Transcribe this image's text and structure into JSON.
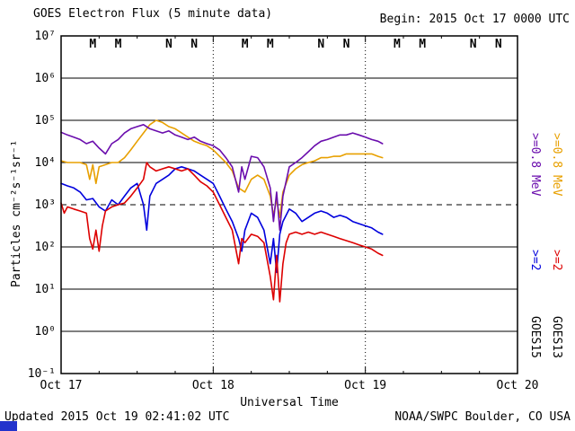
{
  "header": {
    "title": "GOES Electron Flux (5 minute data)",
    "begin_label": "Begin: 2015 Oct 17 0000 UTC"
  },
  "footer": {
    "updated_label": "Updated 2015 Oct 19 02:41:02 UTC",
    "source_label": "NOAA/SWPC Boulder, CO USA"
  },
  "legend": {
    "goes15": {
      "name": "GOES15",
      "e08_label": ">=0.8 MeV",
      "e2_label": ">=2",
      "e08_color": "#6a0dad",
      "e2_color": "#0000dd"
    },
    "goes13": {
      "name": "GOES13",
      "e08_label": ">=0.8 MeV",
      "e2_label": ">=2",
      "e08_color": "#e8a000",
      "e2_color": "#dd0000"
    }
  },
  "ui": {
    "bottom_strip_color": "#2233cc"
  },
  "chart_data": {
    "type": "line",
    "title": "GOES Electron Flux (5 minute data)",
    "xlabel": "Universal Time",
    "ylabel": "Particles cm⁻²s⁻¹sr⁻¹",
    "x_unit": "hours since 2015 Oct 17 0000 UTC",
    "xlim_hours": [
      0,
      72
    ],
    "ylim": [
      0.1,
      10000000
    ],
    "x_ticks": [
      {
        "t": 0,
        "label": "Oct 17"
      },
      {
        "t": 24,
        "label": "Oct 18"
      },
      {
        "t": 48,
        "label": "Oct 19"
      },
      {
        "t": 72,
        "label": "Oct 20"
      }
    ],
    "x_minor_tick_hours": 6,
    "y_ticks": [
      {
        "exp": 7,
        "label": "10⁷"
      },
      {
        "exp": 6,
        "label": "10⁶"
      },
      {
        "exp": 5,
        "label": "10⁵"
      },
      {
        "exp": 4,
        "label": "10⁴"
      },
      {
        "exp": 3,
        "label": "10³"
      },
      {
        "exp": 2,
        "label": "10²"
      },
      {
        "exp": 1,
        "label": "10¹"
      },
      {
        "exp": 0,
        "label": "10⁰"
      },
      {
        "exp": -1,
        "label": "10⁻¹"
      }
    ],
    "threshold": {
      "value": 1000,
      "style": "dashed"
    },
    "day_lines_dotted_hours": [
      24,
      48
    ],
    "marker_colors": {
      "goes13": "#dd0000",
      "goes15": "#0000dd"
    },
    "markers": [
      {
        "t": 5,
        "label": "M",
        "sat": "goes13"
      },
      {
        "t": 9,
        "label": "M",
        "sat": "goes15"
      },
      {
        "t": 17,
        "label": "N",
        "sat": "goes13"
      },
      {
        "t": 21,
        "label": "N",
        "sat": "goes15"
      },
      {
        "t": 29,
        "label": "M",
        "sat": "goes13"
      },
      {
        "t": 33,
        "label": "M",
        "sat": "goes15"
      },
      {
        "t": 41,
        "label": "N",
        "sat": "goes13"
      },
      {
        "t": 45,
        "label": "N",
        "sat": "goes15"
      },
      {
        "t": 53,
        "label": "M",
        "sat": "goes13"
      },
      {
        "t": 57,
        "label": "M",
        "sat": "goes15"
      },
      {
        "t": 65,
        "label": "N",
        "sat": "goes13"
      },
      {
        "t": 69,
        "label": "N",
        "sat": "goes15"
      }
    ],
    "series": [
      {
        "name": "GOES13 >=0.8 MeV",
        "color": "#e8a000",
        "points": [
          [
            0,
            11000
          ],
          [
            1,
            10000
          ],
          [
            2,
            10000
          ],
          [
            3,
            10000
          ],
          [
            4,
            8900
          ],
          [
            4.5,
            4000
          ],
          [
            5,
            8900
          ],
          [
            5.5,
            3200
          ],
          [
            6,
            7900
          ],
          [
            7,
            8900
          ],
          [
            8,
            10000
          ],
          [
            9,
            10000
          ],
          [
            10,
            13000
          ],
          [
            11,
            20000
          ],
          [
            12,
            32000
          ],
          [
            13,
            50000
          ],
          [
            14,
            79000
          ],
          [
            15,
            100000
          ],
          [
            16,
            89000
          ],
          [
            17,
            71000
          ],
          [
            18,
            63000
          ],
          [
            19,
            50000
          ],
          [
            20,
            40000
          ],
          [
            21,
            32000
          ],
          [
            22,
            28000
          ],
          [
            23,
            25000
          ],
          [
            24,
            20000
          ],
          [
            25,
            14000
          ],
          [
            26,
            10000
          ],
          [
            27,
            6300
          ],
          [
            28,
            2500
          ],
          [
            29,
            2000
          ],
          [
            30,
            4000
          ],
          [
            31,
            5000
          ],
          [
            32,
            4000
          ],
          [
            33,
            1600
          ],
          [
            33.5,
            560
          ],
          [
            34,
            1300
          ],
          [
            34.5,
            500
          ],
          [
            35,
            2000
          ],
          [
            36,
            5000
          ],
          [
            37,
            7100
          ],
          [
            38,
            8900
          ],
          [
            39,
            10000
          ],
          [
            40,
            11000
          ],
          [
            41,
            13000
          ],
          [
            42,
            13000
          ],
          [
            43,
            14000
          ],
          [
            44,
            14000
          ],
          [
            45,
            16000
          ],
          [
            46,
            16000
          ],
          [
            47,
            16000
          ],
          [
            48,
            16000
          ],
          [
            49,
            16000
          ],
          [
            50,
            14000
          ],
          [
            50.7,
            13000
          ]
        ]
      },
      {
        "name": "GOES15 >=0.8 MeV",
        "color": "#6a0dad",
        "points": [
          [
            0,
            52000
          ],
          [
            1,
            45000
          ],
          [
            2,
            40000
          ],
          [
            3,
            35000
          ],
          [
            4,
            28000
          ],
          [
            5,
            32000
          ],
          [
            6,
            22000
          ],
          [
            7,
            16000
          ],
          [
            8,
            28000
          ],
          [
            9,
            35000
          ],
          [
            10,
            50000
          ],
          [
            11,
            63000
          ],
          [
            12,
            71000
          ],
          [
            13,
            79000
          ],
          [
            14,
            63000
          ],
          [
            15,
            56000
          ],
          [
            16,
            50000
          ],
          [
            17,
            56000
          ],
          [
            18,
            45000
          ],
          [
            19,
            40000
          ],
          [
            20,
            35000
          ],
          [
            21,
            40000
          ],
          [
            22,
            32000
          ],
          [
            23,
            28000
          ],
          [
            24,
            25000
          ],
          [
            25,
            20000
          ],
          [
            26,
            13000
          ],
          [
            27,
            7900
          ],
          [
            28,
            2000
          ],
          [
            28.5,
            7900
          ],
          [
            29,
            4000
          ],
          [
            30,
            14000
          ],
          [
            31,
            13000
          ],
          [
            32,
            7900
          ],
          [
            33,
            2500
          ],
          [
            33.5,
            400
          ],
          [
            34,
            2000
          ],
          [
            34.5,
            250
          ],
          [
            35,
            1600
          ],
          [
            36,
            7900
          ],
          [
            37,
            10000
          ],
          [
            38,
            13000
          ],
          [
            39,
            18000
          ],
          [
            40,
            25000
          ],
          [
            41,
            32000
          ],
          [
            42,
            35000
          ],
          [
            43,
            40000
          ],
          [
            44,
            45000
          ],
          [
            45,
            45000
          ],
          [
            46,
            50000
          ],
          [
            47,
            45000
          ],
          [
            48,
            40000
          ],
          [
            49,
            35000
          ],
          [
            50,
            32000
          ],
          [
            50.7,
            28000
          ]
        ]
      },
      {
        "name": "GOES15 >=2 MeV",
        "color": "#0000dd",
        "points": [
          [
            0,
            3200
          ],
          [
            1,
            2800
          ],
          [
            2,
            2500
          ],
          [
            3,
            2000
          ],
          [
            4,
            1300
          ],
          [
            5,
            1400
          ],
          [
            6,
            890
          ],
          [
            7,
            710
          ],
          [
            8,
            1300
          ],
          [
            9,
            1000
          ],
          [
            10,
            1600
          ],
          [
            11,
            2500
          ],
          [
            12,
            3200
          ],
          [
            13,
            1000
          ],
          [
            13.5,
            250
          ],
          [
            14,
            1600
          ],
          [
            15,
            3200
          ],
          [
            16,
            4000
          ],
          [
            17,
            5000
          ],
          [
            18,
            7100
          ],
          [
            19,
            7900
          ],
          [
            20,
            7100
          ],
          [
            21,
            6300
          ],
          [
            22,
            5000
          ],
          [
            23,
            4000
          ],
          [
            24,
            3200
          ],
          [
            25,
            1600
          ],
          [
            26,
            790
          ],
          [
            27,
            400
          ],
          [
            28,
            158
          ],
          [
            28.5,
            79
          ],
          [
            29,
            250
          ],
          [
            30,
            630
          ],
          [
            31,
            500
          ],
          [
            32,
            250
          ],
          [
            33,
            40
          ],
          [
            33.5,
            158
          ],
          [
            34,
            25
          ],
          [
            34.5,
            200
          ],
          [
            35,
            400
          ],
          [
            36,
            790
          ],
          [
            37,
            630
          ],
          [
            38,
            400
          ],
          [
            39,
            500
          ],
          [
            40,
            630
          ],
          [
            41,
            710
          ],
          [
            42,
            630
          ],
          [
            43,
            500
          ],
          [
            44,
            560
          ],
          [
            45,
            500
          ],
          [
            46,
            400
          ],
          [
            47,
            355
          ],
          [
            48,
            316
          ],
          [
            49,
            282
          ],
          [
            50,
            224
          ],
          [
            50.7,
            200
          ]
        ]
      },
      {
        "name": "GOES13 >=2 MeV",
        "color": "#dd0000",
        "points": [
          [
            0,
            1100
          ],
          [
            0.5,
            630
          ],
          [
            1,
            890
          ],
          [
            2,
            790
          ],
          [
            3,
            710
          ],
          [
            4,
            630
          ],
          [
            4.5,
            158
          ],
          [
            5,
            89
          ],
          [
            5.5,
            250
          ],
          [
            6,
            79
          ],
          [
            6.5,
            316
          ],
          [
            7,
            710
          ],
          [
            8,
            890
          ],
          [
            9,
            1000
          ],
          [
            10,
            1100
          ],
          [
            11,
            1600
          ],
          [
            12,
            2500
          ],
          [
            13,
            4000
          ],
          [
            13.5,
            10000
          ],
          [
            14,
            7900
          ],
          [
            15,
            6300
          ],
          [
            16,
            7100
          ],
          [
            17,
            7900
          ],
          [
            18,
            7100
          ],
          [
            19,
            6300
          ],
          [
            20,
            7100
          ],
          [
            21,
            5000
          ],
          [
            22,
            3500
          ],
          [
            23,
            2800
          ],
          [
            24,
            2000
          ],
          [
            25,
            1000
          ],
          [
            26,
            500
          ],
          [
            27,
            250
          ],
          [
            28,
            40
          ],
          [
            28.5,
            158
          ],
          [
            29,
            126
          ],
          [
            30,
            200
          ],
          [
            31,
            178
          ],
          [
            32,
            126
          ],
          [
            33,
            20
          ],
          [
            33.5,
            5.6
          ],
          [
            34,
            63
          ],
          [
            34.5,
            5
          ],
          [
            35,
            40
          ],
          [
            35.5,
            126
          ],
          [
            36,
            200
          ],
          [
            37,
            224
          ],
          [
            38,
            200
          ],
          [
            39,
            224
          ],
          [
            40,
            200
          ],
          [
            41,
            224
          ],
          [
            42,
            200
          ],
          [
            43,
            178
          ],
          [
            44,
            158
          ],
          [
            45,
            141
          ],
          [
            46,
            126
          ],
          [
            47,
            112
          ],
          [
            48,
            100
          ],
          [
            49,
            89
          ],
          [
            50,
            71
          ],
          [
            50.7,
            63
          ]
        ]
      }
    ]
  }
}
